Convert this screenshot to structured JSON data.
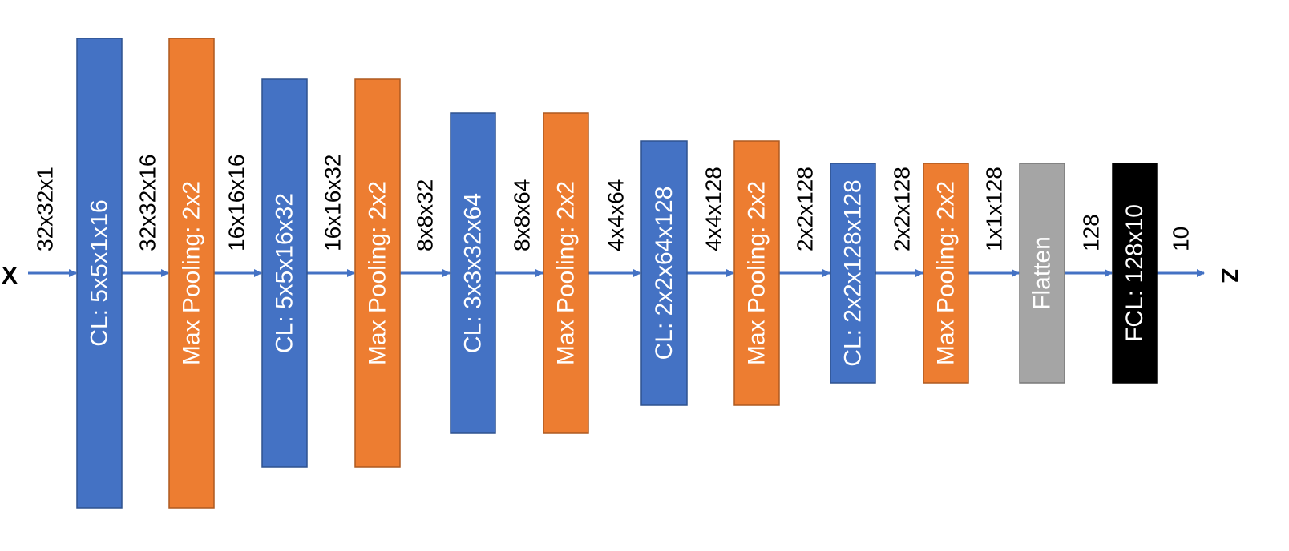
{
  "input_label": "X",
  "output_label": "Z",
  "colors": {
    "conv": "#4472C4",
    "pool": "#ED7D31",
    "flatten": "#A5A5A5",
    "fcl": "#000000",
    "arrow": "#4472C4"
  },
  "blocks": [
    {
      "type": "conv",
      "label": "CL: 5x5x1x16"
    },
    {
      "type": "pool",
      "label": "Max Pooling: 2x2"
    },
    {
      "type": "conv",
      "label": "CL: 5x5x16x32"
    },
    {
      "type": "pool",
      "label": "Max Pooling: 2x2"
    },
    {
      "type": "conv",
      "label": "CL: 3x3x32x64"
    },
    {
      "type": "pool",
      "label": "Max Pooling: 2x2"
    },
    {
      "type": "conv",
      "label": "CL: 2x2x64x128"
    },
    {
      "type": "pool",
      "label": "Max Pooling: 2x2"
    },
    {
      "type": "conv",
      "label": "CL: 2x2x128x128"
    },
    {
      "type": "pool",
      "label": "Max Pooling: 2x2"
    },
    {
      "type": "flatten",
      "label": "Flatten"
    },
    {
      "type": "fcl",
      "label": "FCL: 128x10"
    }
  ],
  "dims": [
    "32x32x1",
    "32x32x16",
    "16x16x16",
    "16x16x32",
    "8x8x32",
    "8x8x64",
    "4x4x64",
    "4x4x128",
    "2x2x128",
    "2x2x128",
    "1x1x128",
    "128",
    "10"
  ]
}
